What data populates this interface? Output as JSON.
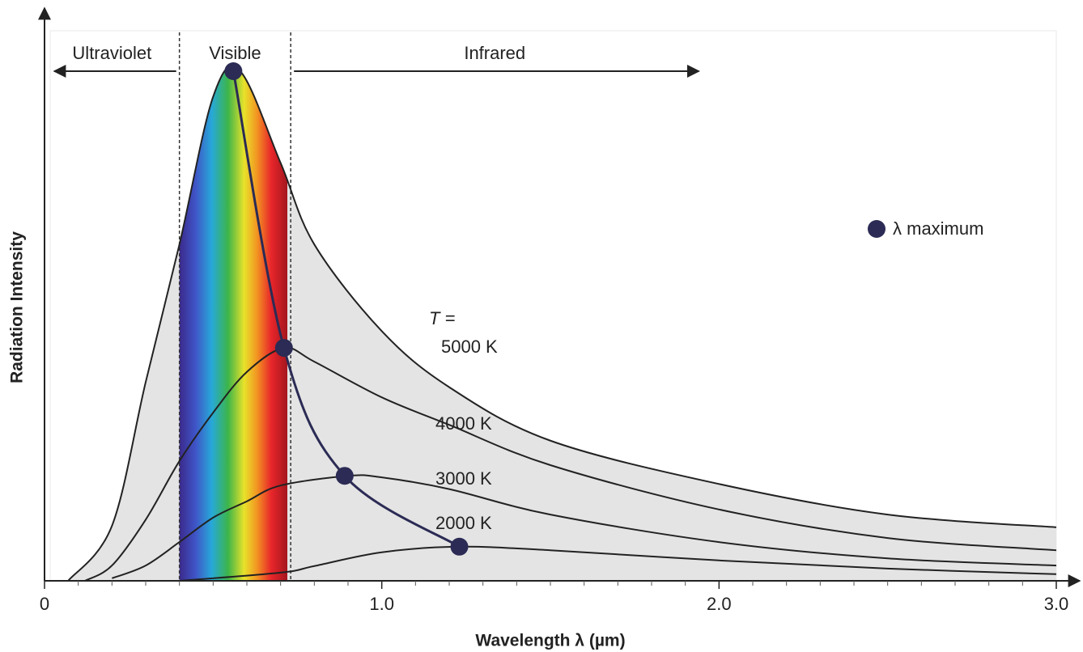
{
  "chart_data": {
    "type": "line",
    "x_label": "Wavelength λ (µm)",
    "y_label": "Radiation Intensity",
    "xlim": [
      0,
      3
    ],
    "ylim": [
      0,
      100
    ],
    "xticks": [
      0,
      {
        "value": 1,
        "label": "1.0"
      },
      {
        "value": 2,
        "label": "2.0"
      },
      {
        "value": 3,
        "label": "3.0"
      }
    ],
    "xminorticks": [
      0.1,
      0.2,
      0.3,
      0.4,
      0.5,
      0.6,
      0.7,
      0.8,
      0.9,
      1.1,
      1.2,
      1.3,
      1.4,
      1.5,
      1.6,
      1.7,
      1.8,
      1.9,
      2.1,
      2.2,
      2.3,
      2.4,
      2.5,
      2.6,
      2.7,
      2.8,
      2.9
    ],
    "regions": [
      {
        "label": "Ultraviolet",
        "from": 0,
        "to": 0.4
      },
      {
        "label": "Visible",
        "from": 0.4,
        "to": 0.73
      },
      {
        "label": "Infrared",
        "from": 0.73,
        "to": 1.94
      }
    ],
    "series_label_prefix": "T =",
    "series": [
      {
        "name": "5000 K",
        "color": "#222222",
        "x": [
          0.07,
          0.2,
          0.3,
          0.4,
          0.5,
          0.58,
          0.7,
          0.8,
          1.0,
          1.2,
          1.5,
          2.0,
          2.5,
          3.0
        ],
        "values": [
          0,
          10.8,
          39,
          66,
          95,
          100,
          82,
          66,
          49,
          38,
          27.5,
          19,
          13,
          10.5
        ]
      },
      {
        "name": "4000 K",
        "color": "#222222",
        "x": [
          0.12,
          0.2,
          0.3,
          0.4,
          0.5,
          0.6,
          0.71,
          0.8,
          1.0,
          1.2,
          1.5,
          2.0,
          2.5,
          3.0
        ],
        "values": [
          0,
          3,
          12,
          23.5,
          33,
          41,
          45.7,
          43,
          36,
          30.6,
          22.7,
          14,
          8.4,
          6
        ]
      },
      {
        "name": "3000 K",
        "color": "#222222",
        "x": [
          0.2,
          0.3,
          0.4,
          0.5,
          0.6,
          0.7,
          0.9,
          1.0,
          1.2,
          1.5,
          2.0,
          2.5,
          3.0
        ],
        "values": [
          0.5,
          3,
          7.6,
          12.4,
          15.6,
          18.7,
          20.6,
          20.3,
          18,
          13,
          7.6,
          4.4,
          3
        ]
      },
      {
        "name": "2000 K",
        "color": "#222222",
        "x": [
          0.4,
          0.7,
          0.8,
          1.0,
          1.23,
          1.5,
          2.0,
          2.5,
          3.0
        ],
        "values": [
          0,
          1.6,
          2.9,
          5.6,
          6.7,
          6,
          4,
          2.4,
          1.3
        ]
      },
      {
        "name": "λ maximum",
        "color": "#2b2b55",
        "markers": true,
        "x": [
          0.56,
          0.71,
          0.89,
          1.23
        ],
        "values": [
          100,
          45.7,
          20.6,
          6.7
        ]
      }
    ],
    "legend": "upper right",
    "area_color": "#e4e4e4",
    "spectrum": {
      "from": 0.4,
      "to": 0.72
    }
  }
}
